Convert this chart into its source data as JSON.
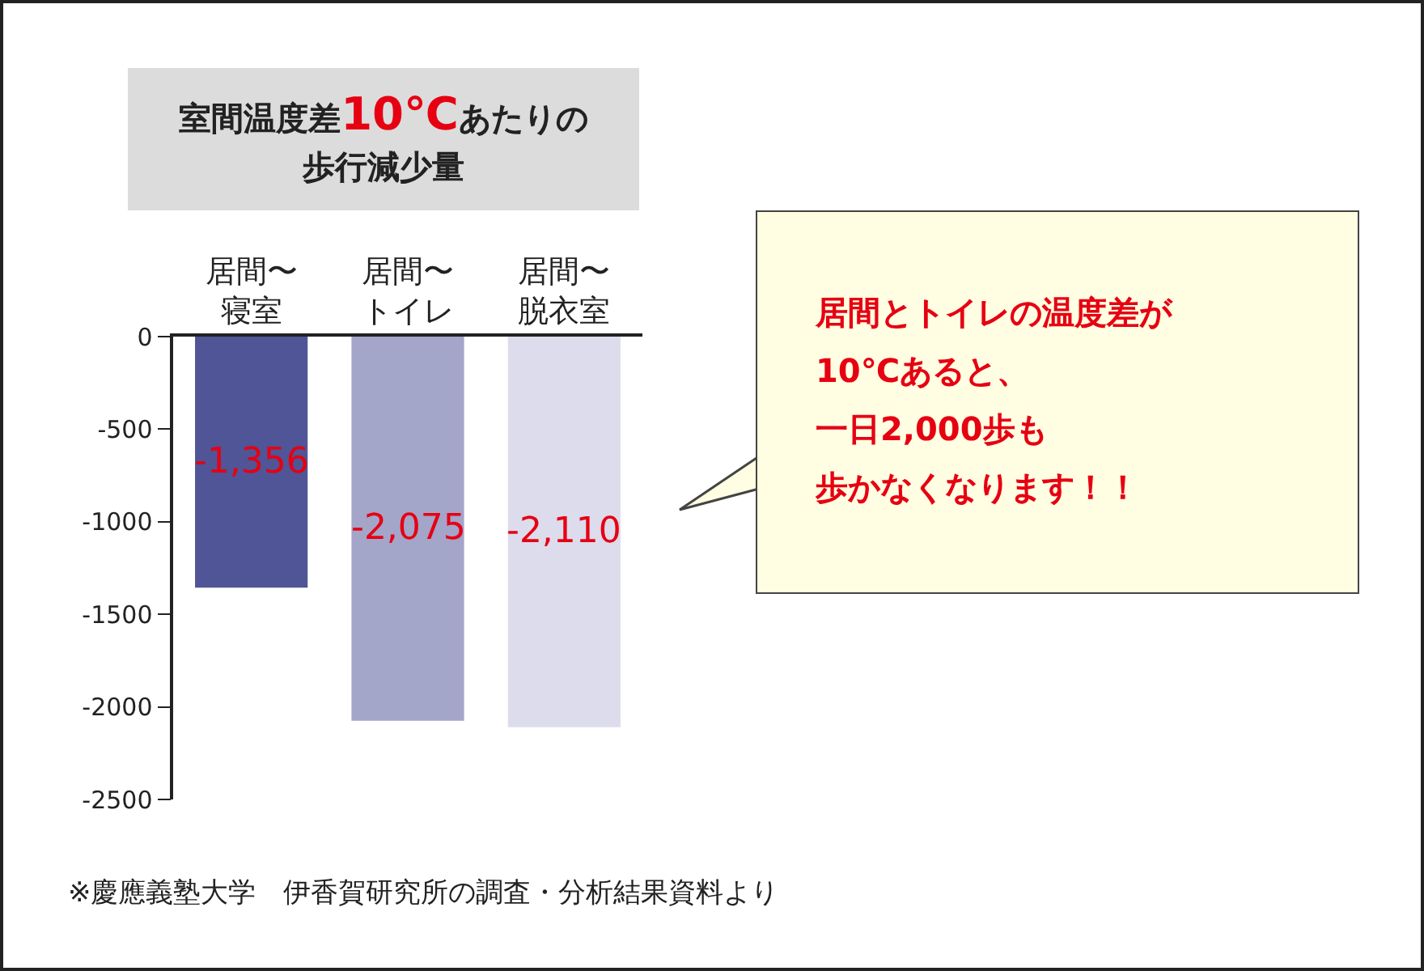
{
  "chart_data": {
    "type": "bar",
    "title": "室間温度差10℃あたりの歩行減少量",
    "categories": [
      "居間〜寝室",
      "居間〜トイレ",
      "居間〜脱衣室"
    ],
    "values": [
      -1356,
      -2075,
      -2110
    ],
    "colors": [
      "#4f5596",
      "#a3a5c9",
      "#dcdcec"
    ],
    "value_labels": [
      "-1,356",
      "-2,075",
      "-2,110"
    ],
    "ylim": [
      -2500,
      0
    ],
    "yticks": [
      -2500,
      -2000,
      -1500,
      -1000,
      -500,
      0
    ],
    "grid": false,
    "annotations": [
      "居間とトイレの温度差が",
      "10℃あると、",
      "一日2,000歩も",
      "歩かなくなります！！",
      "※慶應義塾大学　伊香賀研究所の調査・分析結果資料より"
    ]
  }
}
